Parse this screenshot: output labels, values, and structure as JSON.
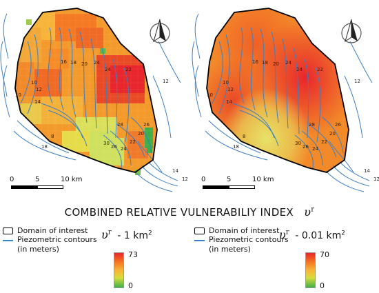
{
  "title": {
    "text": "COMBINED RELATIVE VULNERABILIY INDEX",
    "symbol": "υ",
    "symbol_sup": "r"
  },
  "maps": [
    {
      "resolution_prefix": "- 1 km",
      "resolution_sup": "2",
      "legend_max": "73",
      "legend_min": "0",
      "contour_labels": [
        "16",
        "18",
        "20",
        "24",
        "24",
        "22",
        "10",
        "12",
        "14",
        "8",
        "28",
        "26",
        "30",
        "26",
        "24",
        "22",
        "20",
        "18",
        "14",
        "12",
        "10",
        "12"
      ]
    },
    {
      "resolution_prefix": "- 0.01 km",
      "resolution_sup": "2",
      "legend_max": "70",
      "legend_min": "0",
      "contour_labels": [
        "16",
        "18",
        "20",
        "24",
        "24",
        "22",
        "10",
        "12",
        "14",
        "8",
        "28",
        "26",
        "30",
        "26",
        "24",
        "22",
        "20",
        "18",
        "14",
        "12",
        "10",
        "12"
      ]
    }
  ],
  "scale": {
    "t0": "0",
    "t5": "5",
    "t10": "10 km"
  },
  "legend": {
    "domain_label": "Domain of interest",
    "piezo_label": "Piezometric contours",
    "piezo_sub": "(in meters)"
  },
  "colors": {
    "high": "#e8262b",
    "mid_high": "#f47a23",
    "mid": "#f7b43a",
    "mid_low": "#d7dc3c",
    "low": "#3fae49",
    "contour": "#3b7fc4",
    "domain_outline": "#000000"
  },
  "icons": {
    "north_arrow": "north-arrow-icon"
  }
}
